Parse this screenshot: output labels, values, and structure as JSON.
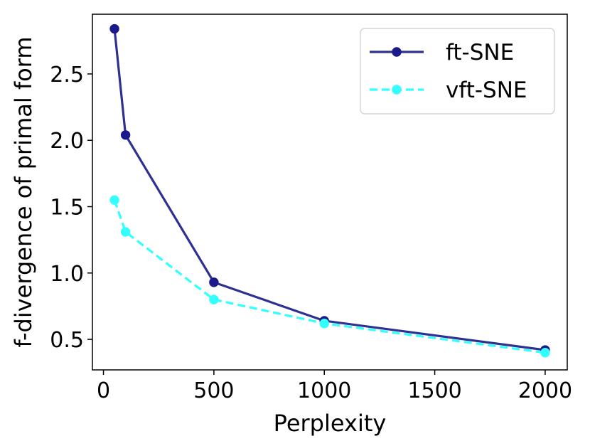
{
  "chart_data": {
    "type": "line",
    "title": "",
    "xlabel": "Perplexity",
    "ylabel": "f-divergence of primal form",
    "xlim": [
      -50,
      2100
    ],
    "ylim": [
      0.27,
      2.95
    ],
    "xticks": [
      0,
      500,
      1000,
      1500,
      2000
    ],
    "xtick_labels": [
      "0",
      "500",
      "1000",
      "1500",
      "2000"
    ],
    "yticks": [
      0.5,
      1.0,
      1.5,
      2.0,
      2.5
    ],
    "ytick_labels": [
      "0.5",
      "1.0",
      "1.5",
      "2.0",
      "2.5"
    ],
    "grid": false,
    "legend_position": "top-right",
    "x": [
      50,
      100,
      500,
      1000,
      2000
    ],
    "series": [
      {
        "name": "ft-SNE",
        "values": [
          2.84,
          2.04,
          0.93,
          0.64,
          0.42
        ],
        "color": "#2e3192",
        "marker_color": "#1a1a8c",
        "dashed": false
      },
      {
        "name": "vft-SNE",
        "values": [
          1.55,
          1.31,
          0.8,
          0.62,
          0.4
        ],
        "color": "#33ffff",
        "marker_color": "#33ffff",
        "dashed": true
      }
    ]
  }
}
